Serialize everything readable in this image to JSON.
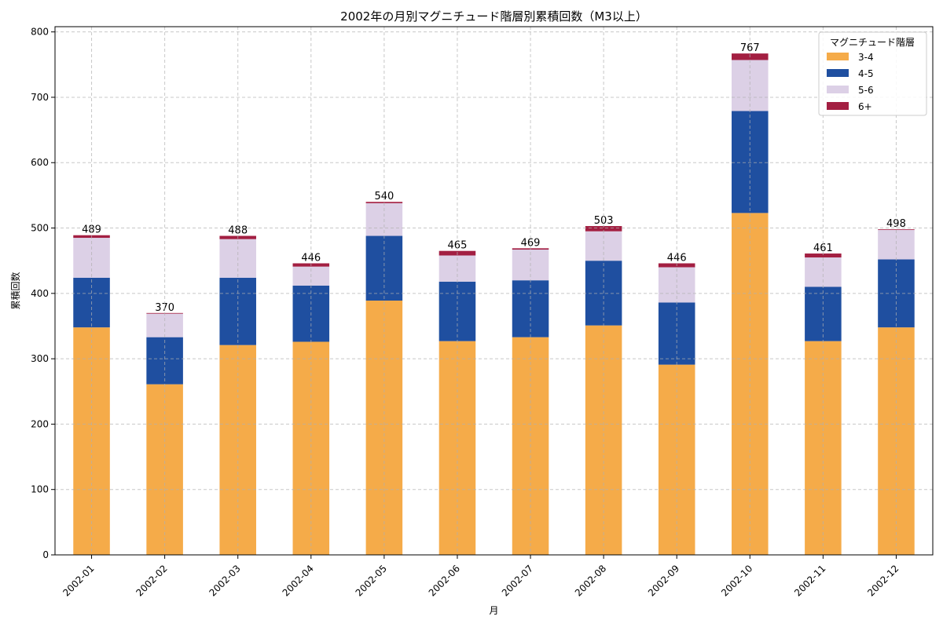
{
  "chart_data": {
    "type": "bar",
    "stacked": true,
    "title": "2002年の月別マグニチュード階層別累積回数（M3以上）",
    "xlabel": "月",
    "ylabel": "累積回数",
    "ylim": [
      0,
      808
    ],
    "yticks": [
      0,
      100,
      200,
      300,
      400,
      500,
      600,
      700,
      800
    ],
    "grid": true,
    "legend_title": "マグニチュード階層",
    "legend_placement": "top-right",
    "categories": [
      "2002-01",
      "2002-02",
      "2002-03",
      "2002-04",
      "2002-05",
      "2002-06",
      "2002-07",
      "2002-08",
      "2002-09",
      "2002-10",
      "2002-11",
      "2002-12"
    ],
    "series": [
      {
        "name": "3-4",
        "color": "#f5ab49",
        "values": [
          348,
          261,
          321,
          326,
          389,
          327,
          333,
          351,
          291,
          523,
          327,
          348
        ]
      },
      {
        "name": "4-5",
        "color": "#1f4fa0",
        "values": [
          76,
          72,
          103,
          86,
          99,
          91,
          87,
          99,
          95,
          156,
          83,
          104
        ]
      },
      {
        "name": "5-6",
        "color": "#dcd0e6",
        "values": [
          61,
          36,
          59,
          29,
          50,
          40,
          47,
          45,
          54,
          78,
          45,
          45
        ]
      },
      {
        "name": "6+",
        "color": "#a31f42",
        "values": [
          4,
          1,
          5,
          5,
          2,
          7,
          2,
          8,
          6,
          10,
          6,
          1
        ]
      }
    ],
    "totals": [
      489,
      370,
      488,
      446,
      540,
      465,
      469,
      503,
      446,
      767,
      461,
      498
    ]
  }
}
